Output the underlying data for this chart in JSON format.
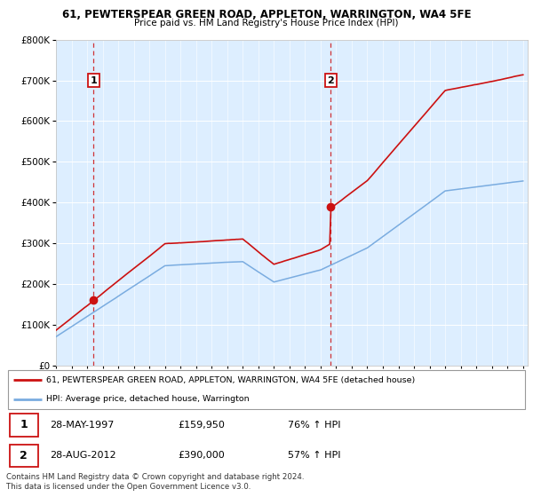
{
  "title1": "61, PEWTERSPEAR GREEN ROAD, APPLETON, WARRINGTON, WA4 5FE",
  "title2": "Price paid vs. HM Land Registry's House Price Index (HPI)",
  "ylim": [
    0,
    800000
  ],
  "yticks": [
    0,
    100000,
    200000,
    300000,
    400000,
    500000,
    600000,
    700000,
    800000
  ],
  "ytick_labels": [
    "£0",
    "£100K",
    "£200K",
    "£300K",
    "£400K",
    "£500K",
    "£600K",
    "£700K",
    "£800K"
  ],
  "sale1_date": 1997.41,
  "sale1_price": 159950,
  "sale2_date": 2012.66,
  "sale2_price": 390000,
  "legend_line1": "61, PEWTERSPEAR GREEN ROAD, APPLETON, WARRINGTON, WA4 5FE (detached house)",
  "legend_line2": "HPI: Average price, detached house, Warrington",
  "table_row1": [
    "1",
    "28-MAY-1997",
    "£159,950",
    "76% ↑ HPI"
  ],
  "table_row2": [
    "2",
    "28-AUG-2012",
    "£390,000",
    "57% ↑ HPI"
  ],
  "footer": "Contains HM Land Registry data © Crown copyright and database right 2024.\nThis data is licensed under the Open Government Licence v3.0.",
  "hpi_color": "#7aace0",
  "price_color": "#cc1111",
  "vline_color": "#cc1111",
  "plot_bg": "#ddeeff"
}
